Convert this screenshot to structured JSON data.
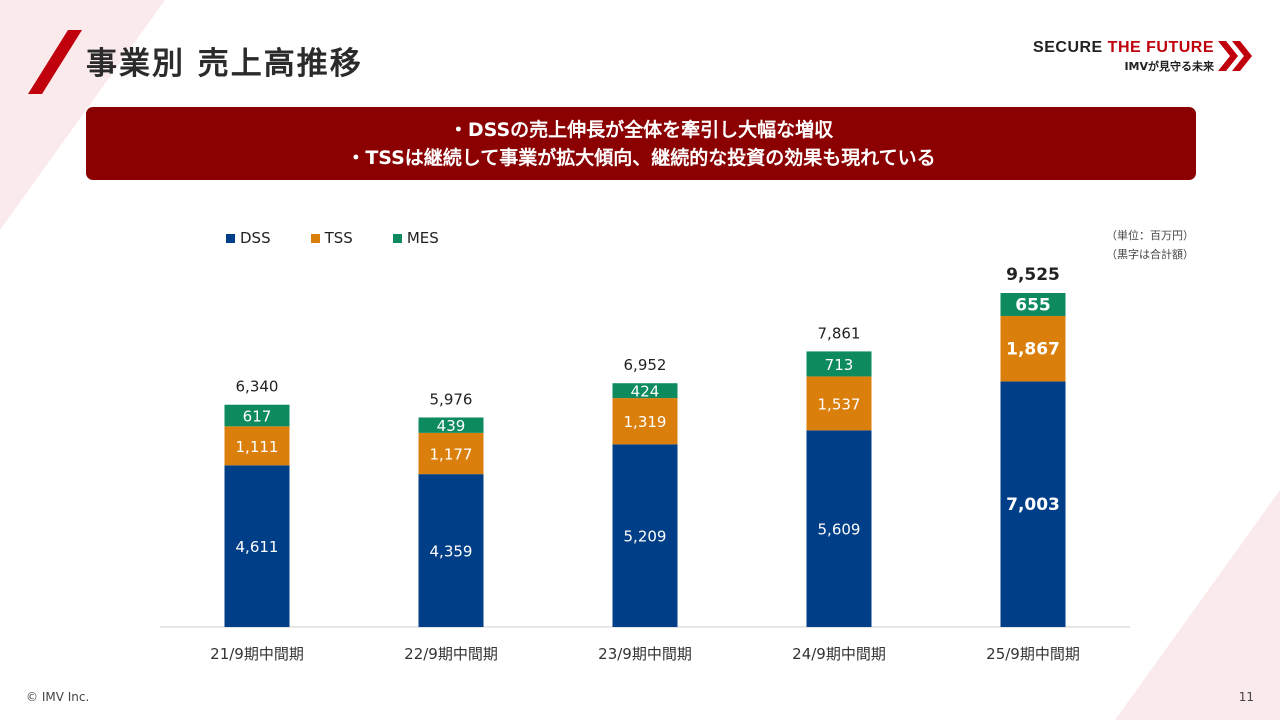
{
  "header": {
    "title": "事業別 売上高推移",
    "brand_prefix": "SECURE ",
    "brand_accent": "THE FUTURE",
    "brand_sub": "IMVが見守る未来"
  },
  "banner": {
    "line1": "・DSSの売上伸長が全体を牽引し大幅な増収",
    "line2": "・TSSは継続して事業が拡大傾向、継続的な投資の効果も現れている"
  },
  "notes": {
    "unit": "（単位：百万円）",
    "total_note": "（黒字は合計額）"
  },
  "footer": {
    "copyright": "© IMV Inc.",
    "page": "11"
  },
  "colors": {
    "DSS": "#003f87",
    "TSS": "#db7f0c",
    "MES": "#0e8a5f",
    "accent": "#c0000c",
    "banner": "#8b0000"
  },
  "chart_data": {
    "type": "bar",
    "stacked": true,
    "categories": [
      "21/9期中間期",
      "22/9期中間期",
      "23/9期中間期",
      "24/9期中間期",
      "25/9期中間期"
    ],
    "series": [
      {
        "name": "DSS",
        "values": [
          4611,
          4359,
          5209,
          5609,
          7003
        ]
      },
      {
        "name": "TSS",
        "values": [
          1111,
          1177,
          1319,
          1537,
          1867
        ]
      },
      {
        "name": "MES",
        "values": [
          617,
          439,
          424,
          713,
          655
        ]
      }
    ],
    "value_labels": {
      "DSS": [
        "4,611",
        "4,359",
        "5,209",
        "5,609",
        "7,003"
      ],
      "TSS": [
        "1,111",
        "1,177",
        "1,319",
        "1,537",
        "1,867"
      ],
      "MES": [
        "617",
        "439",
        "424",
        "713",
        "655"
      ]
    },
    "totals": [
      "6,340",
      "5,976",
      "6,952",
      "7,861",
      "9,525"
    ],
    "highlight_last": true,
    "legend": "top-left",
    "grid": false,
    "ylim": [
      0,
      9525
    ]
  }
}
